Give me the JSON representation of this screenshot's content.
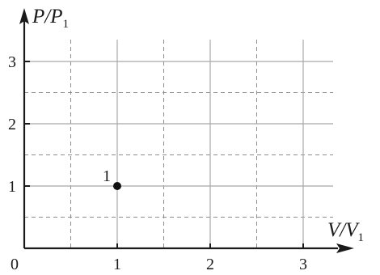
{
  "chart_data": {
    "type": "scatter",
    "title": "",
    "xlabel": {
      "main": "V/V",
      "sub": "1"
    },
    "ylabel": {
      "main": "P/P",
      "sub": "1"
    },
    "origin_label": "0",
    "x_ticks": [
      "1",
      "2",
      "3"
    ],
    "y_ticks": [
      "1",
      "2",
      "3"
    ],
    "xlim": [
      0,
      3.4
    ],
    "ylim": [
      0,
      3.4
    ],
    "grid": {
      "solid_major": true,
      "dashed_half_steps": true
    },
    "points": [
      {
        "label": "1",
        "x": 1,
        "y": 1
      }
    ]
  },
  "colors": {
    "axis": "#1a1a1a",
    "grid_solid": "#a8a8a8",
    "grid_dashed": "#8c8c8c",
    "point": "#111111"
  }
}
